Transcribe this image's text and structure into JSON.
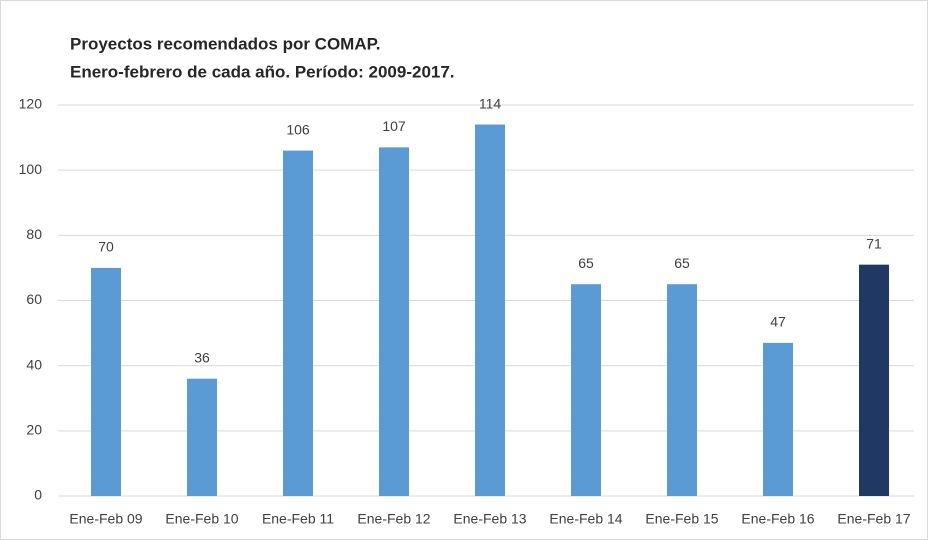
{
  "chart_data": {
    "type": "bar",
    "title": "Proyectos recomendados por COMAP.",
    "subtitle": "Enero-febrero de cada año. Período: 2009-2017.",
    "categories": [
      "Ene-Feb 09",
      "Ene-Feb 10",
      "Ene-Feb 11",
      "Ene-Feb 12",
      "Ene-Feb 13",
      "Ene-Feb 14",
      "Ene-Feb 15",
      "Ene-Feb 16",
      "Ene-Feb 17"
    ],
    "values": [
      70,
      36,
      106,
      107,
      114,
      65,
      65,
      47,
      71
    ],
    "colors": [
      "#5b9bd5",
      "#5b9bd5",
      "#5b9bd5",
      "#5b9bd5",
      "#5b9bd5",
      "#5b9bd5",
      "#5b9bd5",
      "#5b9bd5",
      "#1f3864"
    ],
    "ylim": [
      0,
      120
    ],
    "yticks": [
      0,
      20,
      40,
      60,
      80,
      100,
      120
    ],
    "grid": true
  }
}
